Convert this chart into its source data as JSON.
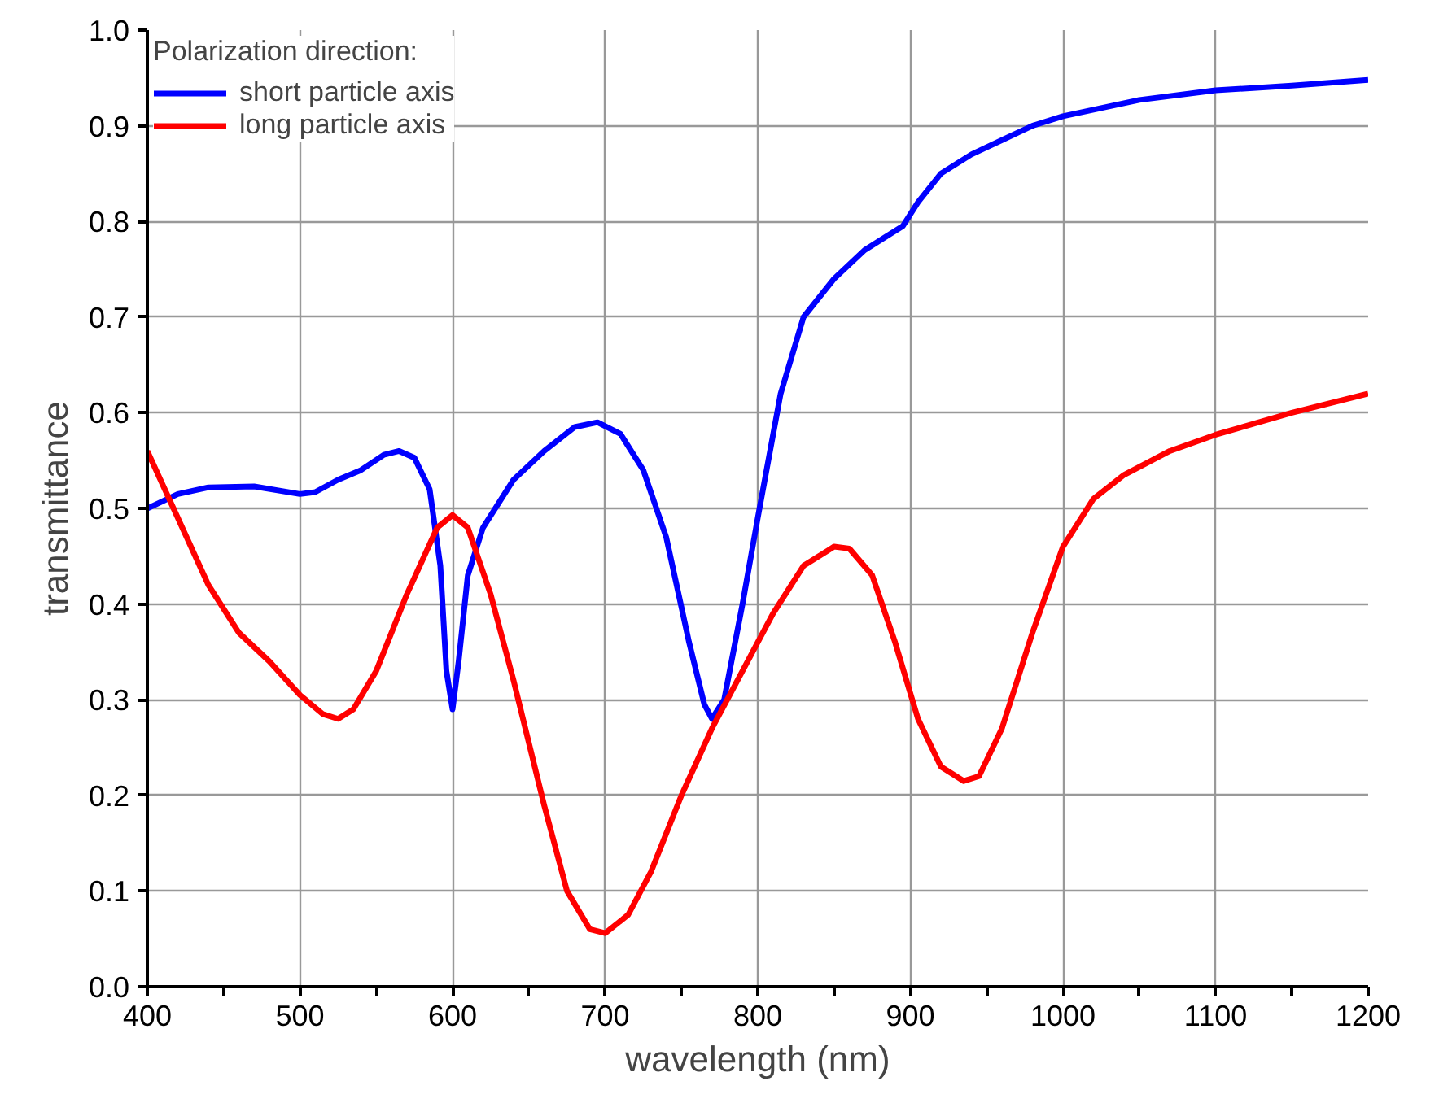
{
  "chart_data": {
    "type": "line",
    "xlabel": "wavelength (nm)",
    "ylabel": "transmittance",
    "legend_title": "Polarization direction:",
    "legend": "top left",
    "grid": true,
    "line_style": "solid",
    "marker": "none",
    "xlim": [
      400,
      1200
    ],
    "ylim": [
      0,
      1.0
    ],
    "xticks": [
      400,
      {
        "value": 450,
        "label": null
      },
      500,
      {
        "value": 550,
        "label": null
      },
      600,
      {
        "value": 650,
        "label": null
      },
      700,
      {
        "value": 750,
        "label": null
      },
      800,
      {
        "value": 850,
        "label": null
      },
      900,
      {
        "value": 950,
        "label": null
      },
      1000,
      {
        "value": 1050,
        "label": null
      },
      1100,
      {
        "value": 1150,
        "label": null
      },
      1200
    ],
    "yticks": [
      {
        "value": 0,
        "label": "0.0"
      },
      0.1,
      0.2,
      0.3,
      0.4,
      0.5,
      0.6,
      0.7,
      0.8,
      0.9,
      {
        "value": 1.0,
        "label": "1.0"
      }
    ],
    "series": [
      {
        "name": "short particle axis",
        "color": "#0000ff",
        "x": [
          400,
          420,
          440,
          470,
          500,
          510,
          525,
          540,
          555,
          565,
          575,
          585,
          592,
          596,
          600,
          604,
          610,
          620,
          640,
          660,
          680,
          695,
          710,
          725,
          740,
          755,
          765,
          770,
          778,
          790,
          800,
          815,
          830,
          850,
          870,
          885,
          895,
          905,
          920,
          940,
          960,
          980,
          1000,
          1050,
          1100,
          1150,
          1200
        ],
        "values": [
          0.5,
          0.515,
          0.522,
          0.523,
          0.515,
          0.517,
          0.53,
          0.54,
          0.556,
          0.56,
          0.553,
          0.52,
          0.44,
          0.33,
          0.29,
          0.34,
          0.43,
          0.48,
          0.53,
          0.56,
          0.585,
          0.59,
          0.578,
          0.54,
          0.47,
          0.36,
          0.295,
          0.28,
          0.3,
          0.4,
          0.49,
          0.62,
          0.7,
          0.74,
          0.77,
          0.785,
          0.795,
          0.82,
          0.85,
          0.87,
          0.885,
          0.9,
          0.91,
          0.927,
          0.937,
          0.942,
          0.948
        ]
      },
      {
        "name": "long particle axis",
        "color": "#ff0000",
        "x": [
          400,
          420,
          440,
          460,
          480,
          500,
          515,
          525,
          535,
          550,
          570,
          590,
          600,
          610,
          625,
          640,
          660,
          675,
          690,
          700,
          715,
          730,
          750,
          770,
          790,
          810,
          830,
          850,
          860,
          875,
          890,
          905,
          920,
          935,
          945,
          960,
          980,
          1000,
          1020,
          1040,
          1070,
          1100,
          1150,
          1200
        ],
        "values": [
          0.56,
          0.49,
          0.42,
          0.37,
          0.34,
          0.305,
          0.285,
          0.28,
          0.29,
          0.33,
          0.41,
          0.48,
          0.493,
          0.48,
          0.41,
          0.32,
          0.19,
          0.1,
          0.06,
          0.056,
          0.075,
          0.12,
          0.2,
          0.27,
          0.33,
          0.39,
          0.44,
          0.46,
          0.458,
          0.43,
          0.36,
          0.28,
          0.23,
          0.215,
          0.22,
          0.27,
          0.37,
          0.46,
          0.51,
          0.535,
          0.56,
          0.577,
          0.6,
          0.62
        ]
      }
    ]
  }
}
